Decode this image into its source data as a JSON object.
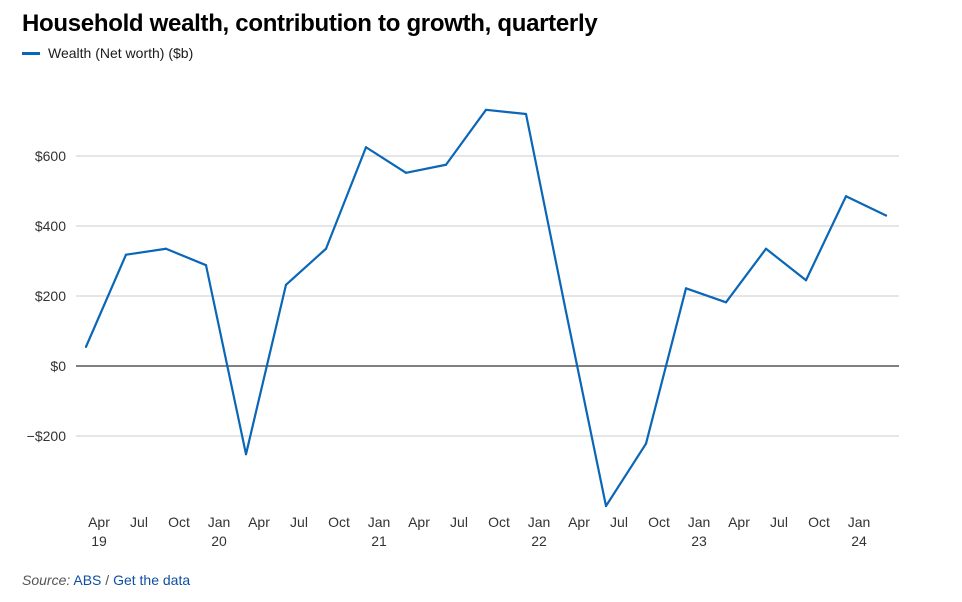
{
  "title": "Household wealth, contribution to growth, quarterly",
  "source": {
    "label": "Source:",
    "org": "ABS",
    "separator": "/",
    "link": "Get the data"
  },
  "colors": {
    "series": "#0a66b7",
    "grid": "#cccccc",
    "zero": "#000000",
    "text": "#333333"
  },
  "chart_data": {
    "type": "line",
    "title": "Household wealth, contribution to growth, quarterly",
    "xlabel": "",
    "ylabel": "",
    "ylim": [
      -400,
      750
    ],
    "grid": true,
    "legend": "top-left",
    "y_ticks": [
      {
        "value": 600,
        "label": "$600"
      },
      {
        "value": 400,
        "label": "$400"
      },
      {
        "value": 200,
        "label": "$200"
      },
      {
        "value": 0,
        "label": "$0"
      },
      {
        "value": -200,
        "label": "−$200"
      }
    ],
    "x": [
      "2019-Mar",
      "2019-Jun",
      "2019-Sep",
      "2019-Dec",
      "2020-Mar",
      "2020-Jun",
      "2020-Sep",
      "2020-Dec",
      "2021-Mar",
      "2021-Jun",
      "2021-Sep",
      "2021-Dec",
      "2022-Mar",
      "2022-Jun",
      "2022-Sep",
      "2022-Dec",
      "2023-Mar",
      "2023-Jun",
      "2023-Sep",
      "2023-Dec",
      "2024-Mar"
    ],
    "x_ticks": [
      {
        "month": "Apr",
        "year": "19"
      },
      {
        "month": "Jul",
        "year": ""
      },
      {
        "month": "Oct",
        "year": ""
      },
      {
        "month": "Jan",
        "year": "20"
      },
      {
        "month": "Apr",
        "year": ""
      },
      {
        "month": "Jul",
        "year": ""
      },
      {
        "month": "Oct",
        "year": ""
      },
      {
        "month": "Jan",
        "year": "21"
      },
      {
        "month": "Apr",
        "year": ""
      },
      {
        "month": "Jul",
        "year": ""
      },
      {
        "month": "Oct",
        "year": ""
      },
      {
        "month": "Jan",
        "year": "22"
      },
      {
        "month": "Apr",
        "year": ""
      },
      {
        "month": "Jul",
        "year": ""
      },
      {
        "month": "Oct",
        "year": ""
      },
      {
        "month": "Jan",
        "year": "23"
      },
      {
        "month": "Apr",
        "year": ""
      },
      {
        "month": "Jul",
        "year": ""
      },
      {
        "month": "Oct",
        "year": ""
      },
      {
        "month": "Jan",
        "year": "24"
      }
    ],
    "series": [
      {
        "name": "Wealth (Net worth) ($b)",
        "values": [
          55,
          318,
          335,
          288,
          -252,
          232,
          335,
          625,
          552,
          575,
          732,
          720,
          155,
          -400,
          -222,
          222,
          182,
          335,
          245,
          485,
          430
        ]
      }
    ]
  }
}
